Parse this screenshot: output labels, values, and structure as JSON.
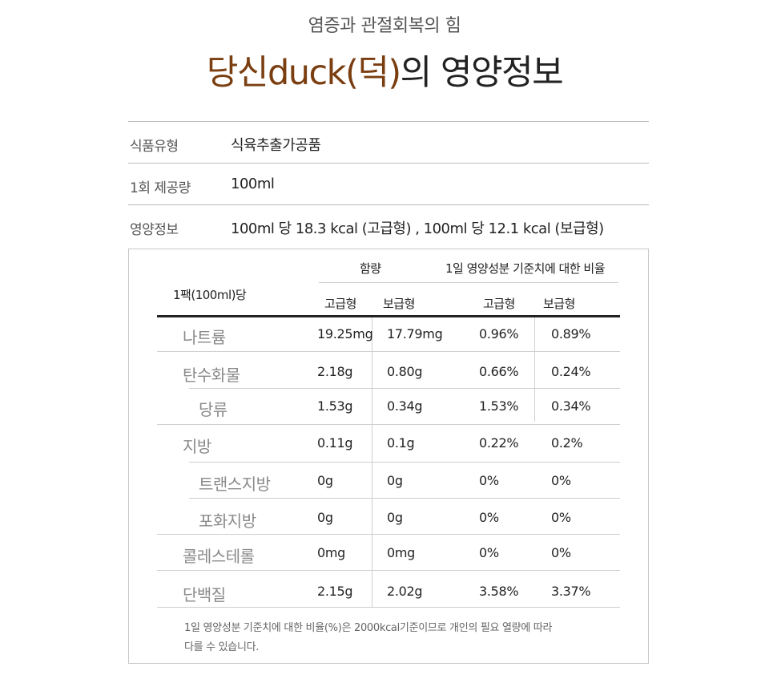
{
  "header": {
    "subtitle": "염증과 관절회복의 힘",
    "title_brand": "당신duck(덕)",
    "title_rest": "의 영양정보"
  },
  "info_rows": [
    {
      "key": "식품유형",
      "value": "식육추출가공품"
    },
    {
      "key": "1회 제공량",
      "value": "100ml"
    },
    {
      "key": "영양정보",
      "value": "100ml 당 18.3 kcal (고급형) , 100ml 당 12.1 kcal (보급형)"
    }
  ],
  "table": {
    "row_header": "1팩(100ml)당",
    "group_content": "함량",
    "group_ratio": "1일 영양성분 기준치에 대한 비율",
    "sub_headers": [
      "고급형",
      "보급형",
      "고급형",
      "보급형"
    ],
    "rows": [
      {
        "name": "나트륨",
        "values": [
          "19.25mg",
          "17.79mg",
          "0.96%",
          "0.89%"
        ]
      },
      {
        "name": "탄수화물",
        "values": [
          "2.18g",
          "0.80g",
          "0.66%",
          "0.24%"
        ]
      },
      {
        "name": "당류",
        "values": [
          "1.53g",
          "0.34g",
          "1.53%",
          "0.34%"
        ]
      },
      {
        "name": "지방",
        "values": [
          "0.11g",
          "0.1g",
          "0.22%",
          "0.2%"
        ]
      },
      {
        "name": "트랜스지방",
        "values": [
          "0g",
          "0g",
          "0%",
          "0%"
        ]
      },
      {
        "name": "포화지방",
        "values": [
          "0g",
          "0g",
          "0%",
          "0%"
        ]
      },
      {
        "name": "콜레스테롤",
        "values": [
          "0mg",
          "0mg",
          "0%",
          "0%"
        ]
      },
      {
        "name": "단백질",
        "values": [
          "2.15g",
          "2.02g",
          "3.58%",
          "3.37%"
        ]
      }
    ],
    "note_line1": "1일 영양성분 기준치에  대한 비율(%)은 2000kcal기준이므로 개인의 필요 열량에 따라",
    "note_line2": "다를 수 있습니다."
  }
}
